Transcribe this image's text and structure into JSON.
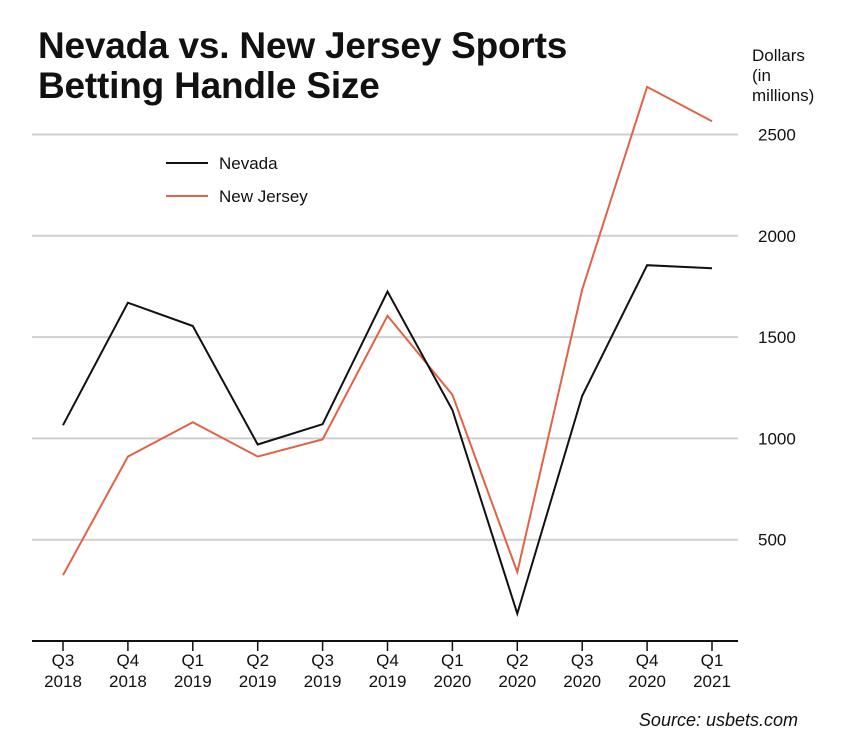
{
  "chart_data": {
    "type": "line",
    "title_lines": [
      "Nevada vs. New Jersey Sports",
      "Betting Handle Size"
    ],
    "ylabel_lines": [
      "Dollars",
      "(in",
      "millions)"
    ],
    "source": "Source: usbets.com",
    "categories": [
      [
        "Q3",
        "2018"
      ],
      [
        "Q4",
        "2018"
      ],
      [
        "Q1",
        "2019"
      ],
      [
        "Q2",
        "2019"
      ],
      [
        "Q3",
        "2019"
      ],
      [
        "Q4",
        "2019"
      ],
      [
        "Q1",
        "2020"
      ],
      [
        "Q2",
        "2020"
      ],
      [
        "Q3",
        "2020"
      ],
      [
        "Q4",
        "2020"
      ],
      [
        "Q1",
        "2021"
      ]
    ],
    "yticks": [
      500,
      1000,
      1500,
      2000,
      2500
    ],
    "ylim": [
      0,
      2750
    ],
    "grid": true,
    "legend_position": "top-left",
    "series": [
      {
        "name": "Nevada",
        "color": "#111111",
        "values": [
          1065,
          1670,
          1555,
          970,
          1070,
          1725,
          1140,
          135,
          1210,
          1855,
          1840
        ]
      },
      {
        "name": "New Jersey",
        "color": "#e06347",
        "values": [
          325,
          910,
          1080,
          910,
          995,
          1605,
          1215,
          340,
          1735,
          2735,
          2565
        ]
      }
    ]
  }
}
